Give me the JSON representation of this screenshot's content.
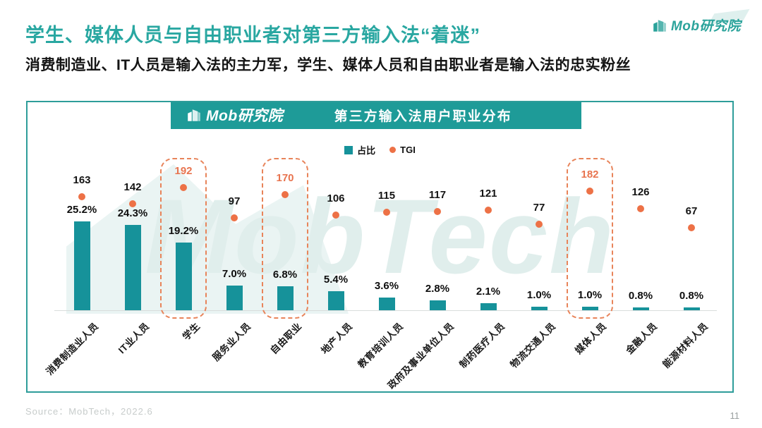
{
  "slide": {
    "title": "学生、媒体人员与自由职业者对第三方输入法“着迷”",
    "subtitle": "消费制造业、IT人员是输入法的主力军，学生、媒体人员和自由职业者是输入法的忠实粉丝",
    "brand": "Mob研究院",
    "source": "Source：MobTech，2022.6",
    "page_number": "11"
  },
  "chart": {
    "header_brand": "Mob研究院",
    "header_title": "第三方输入法用户职业分布",
    "watermark": "MobTech",
    "legend": {
      "bar_label": "占比",
      "dot_label": "TGI"
    }
  },
  "chart_data": {
    "type": "bar",
    "title": "第三方输入法用户职业分布",
    "categories": [
      "消费制造业人员",
      "IT业人员",
      "学生",
      "服务业人员",
      "自由职业",
      "地产人员",
      "教育培训人员",
      "政府及事业单位人员",
      "制药医疗人员",
      "物流交通人员",
      "媒体人员",
      "金融人员",
      "能源材料人员"
    ],
    "series": [
      {
        "name": "占比",
        "type": "bar",
        "unit": "%",
        "values": [
          25.2,
          24.3,
          19.2,
          7.0,
          6.8,
          5.4,
          3.6,
          2.8,
          2.1,
          1.0,
          1.0,
          0.8,
          0.8
        ]
      },
      {
        "name": "TGI",
        "type": "point",
        "values": [
          163,
          142,
          192,
          97,
          170,
          106,
          115,
          117,
          121,
          77,
          182,
          126,
          67
        ]
      }
    ],
    "highlighted_categories": [
      "学生",
      "自由职业",
      "媒体人员"
    ],
    "highlighted_indexes": [
      2,
      4,
      10
    ],
    "legend_position": "top",
    "grid": false,
    "ylim_pct": [
      0,
      26
    ],
    "colors": {
      "bar": "#16929A",
      "tgi_dot": "#ED7146",
      "highlight_text": "#E8744F",
      "highlight_box": "#E8845A",
      "header_bar": "#1E9B98",
      "frame_border": "#2E9D9A",
      "title_text": "#29A7A1"
    }
  }
}
